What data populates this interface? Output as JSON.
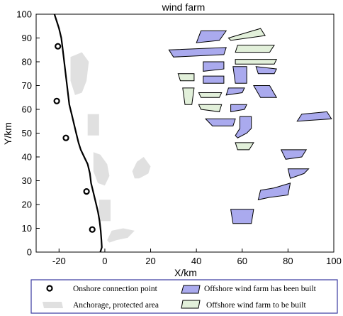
{
  "chart_data": {
    "type": "scatter",
    "title": "wind farm",
    "xlabel": "X/km",
    "ylabel": "Y/km",
    "xlim": [
      -30,
      100
    ],
    "ylim": [
      0,
      100
    ],
    "xticks": [
      -20,
      0,
      20,
      40,
      60,
      80,
      100
    ],
    "yticks": [
      0,
      10,
      20,
      30,
      40,
      50,
      60,
      70,
      80,
      90,
      100
    ],
    "grid": false,
    "legend_position": "bottom",
    "colors": {
      "built_fill": "#aaaaee",
      "planned_fill": "#e2f0da",
      "protected_fill": "#e0e0e0",
      "coast": "#000000",
      "legend_border": "#3a3aa0"
    },
    "coastline": [
      [
        -22,
        100
      ],
      [
        -21,
        97
      ],
      [
        -20,
        94
      ],
      [
        -19,
        90
      ],
      [
        -18.5,
        86
      ],
      [
        -18,
        82
      ],
      [
        -17.5,
        78
      ],
      [
        -17,
        74
      ],
      [
        -16.5,
        70
      ],
      [
        -16,
        66
      ],
      [
        -15.5,
        62
      ],
      [
        -14.5,
        58
      ],
      [
        -13.5,
        54
      ],
      [
        -12.5,
        50
      ],
      [
        -11.5,
        46
      ],
      [
        -10.5,
        43
      ],
      [
        -9,
        40
      ],
      [
        -7.5,
        37
      ],
      [
        -6.5,
        33
      ],
      [
        -6,
        29
      ],
      [
        -5,
        25
      ],
      [
        -4,
        21
      ],
      [
        -3,
        17
      ],
      [
        -2.3,
        13
      ],
      [
        -1.8,
        9
      ],
      [
        -1.5,
        5
      ],
      [
        -1.3,
        2
      ],
      [
        -2,
        0
      ]
    ],
    "onshore_points": [
      {
        "x": -20.5,
        "y": 86.5
      },
      {
        "x": -21,
        "y": 63.5
      },
      {
        "x": -17,
        "y": 48
      },
      {
        "x": -8,
        "y": 25.5
      },
      {
        "x": -5.5,
        "y": 9.5
      }
    ],
    "protected_areas": [
      [
        [
          -15,
          82
        ],
        [
          -10,
          84
        ],
        [
          -7,
          80
        ],
        [
          -8,
          72
        ],
        [
          -10,
          67
        ],
        [
          -13,
          66
        ],
        [
          -15,
          72
        ]
      ],
      [
        [
          -7.5,
          58
        ],
        [
          -2.5,
          58
        ],
        [
          -2.5,
          49
        ],
        [
          -7.5,
          49
        ]
      ],
      [
        [
          -5,
          42
        ],
        [
          -2,
          41
        ],
        [
          1,
          37
        ],
        [
          2,
          32
        ],
        [
          0,
          28
        ],
        [
          -3,
          29
        ],
        [
          -5,
          34
        ]
      ],
      [
        [
          17,
          40
        ],
        [
          20,
          36
        ],
        [
          19,
          33
        ],
        [
          15,
          31
        ],
        [
          13,
          31
        ],
        [
          12,
          34
        ],
        [
          14,
          38
        ]
      ],
      [
        [
          -2.5,
          22
        ],
        [
          2.5,
          22
        ],
        [
          2.5,
          13
        ],
        [
          -2.5,
          13
        ]
      ],
      [
        [
          3,
          9
        ],
        [
          8,
          10
        ],
        [
          13,
          9
        ],
        [
          10,
          6
        ],
        [
          5,
          5
        ],
        [
          2,
          4
        ],
        [
          1,
          5
        ]
      ]
    ],
    "built_farms": [
      [
        [
          42,
          93
        ],
        [
          53,
          93
        ],
        [
          50,
          89
        ],
        [
          40,
          88
        ]
      ],
      [
        [
          28,
          85
        ],
        [
          53,
          86
        ],
        [
          52,
          83
        ],
        [
          30,
          82
        ]
      ],
      [
        [
          43,
          80
        ],
        [
          52,
          80
        ],
        [
          52,
          77
        ],
        [
          43,
          76
        ]
      ],
      [
        [
          43,
          74
        ],
        [
          52,
          74
        ],
        [
          52,
          71
        ],
        [
          43,
          71
        ]
      ],
      [
        [
          56,
          78
        ],
        [
          62,
          78
        ],
        [
          62,
          71
        ],
        [
          57,
          71
        ]
      ],
      [
        [
          66,
          78
        ],
        [
          75,
          77
        ],
        [
          74,
          75
        ],
        [
          67,
          75
        ]
      ],
      [
        [
          54,
          69
        ],
        [
          61,
          69
        ],
        [
          60,
          67
        ],
        [
          53,
          66
        ]
      ],
      [
        [
          65,
          70
        ],
        [
          72,
          70
        ],
        [
          75,
          65
        ],
        [
          68,
          65
        ]
      ],
      [
        [
          55,
          62
        ],
        [
          62,
          62
        ],
        [
          61,
          60
        ],
        [
          55,
          59
        ]
      ],
      [
        [
          44,
          56
        ],
        [
          57,
          56
        ],
        [
          56,
          53
        ],
        [
          47,
          53
        ]
      ],
      [
        [
          59,
          57
        ],
        [
          64,
          57
        ],
        [
          64,
          52
        ],
        [
          62,
          50
        ],
        [
          58,
          48
        ],
        [
          57,
          49
        ],
        [
          59,
          52
        ]
      ],
      [
        [
          86,
          58
        ],
        [
          97,
          59
        ],
        [
          99,
          56
        ],
        [
          84,
          55
        ]
      ],
      [
        [
          77,
          43
        ],
        [
          88,
          43
        ],
        [
          86,
          40
        ],
        [
          79,
          39
        ]
      ],
      [
        [
          80,
          35
        ],
        [
          89,
          35
        ],
        [
          87,
          33
        ],
        [
          81,
          31
        ]
      ],
      [
        [
          68,
          26
        ],
        [
          74,
          27
        ],
        [
          81,
          29
        ],
        [
          80,
          24
        ],
        [
          72,
          23
        ],
        [
          67,
          22
        ]
      ],
      [
        [
          55,
          18
        ],
        [
          65,
          18
        ],
        [
          64,
          12
        ],
        [
          56,
          12
        ]
      ]
    ],
    "planned_farms": [
      [
        [
          54,
          90
        ],
        [
          68,
          94
        ],
        [
          70,
          91
        ],
        [
          55,
          89
        ]
      ],
      [
        [
          58,
          87
        ],
        [
          74,
          87
        ],
        [
          72,
          84
        ],
        [
          57,
          84
        ]
      ],
      [
        [
          57,
          81
        ],
        [
          75,
          81
        ],
        [
          74,
          79
        ],
        [
          57,
          79
        ]
      ],
      [
        [
          32,
          75
        ],
        [
          39,
          75
        ],
        [
          39,
          72
        ],
        [
          33,
          72
        ]
      ],
      [
        [
          34,
          69
        ],
        [
          39,
          69
        ],
        [
          38,
          62
        ],
        [
          35,
          62
        ]
      ],
      [
        [
          41,
          67
        ],
        [
          51,
          67
        ],
        [
          50,
          65
        ],
        [
          42,
          65
        ]
      ],
      [
        [
          41,
          62
        ],
        [
          51,
          62
        ],
        [
          50,
          59
        ],
        [
          42,
          60
        ]
      ],
      [
        [
          57,
          46
        ],
        [
          65,
          46
        ],
        [
          63,
          43
        ],
        [
          58,
          43
        ]
      ]
    ],
    "legend": {
      "onshore": "Onshore connection point",
      "protected": "Anchorage, protected area",
      "built": "Offshore wind farm has been built",
      "planned": "Offshore wind farm to be built"
    }
  }
}
